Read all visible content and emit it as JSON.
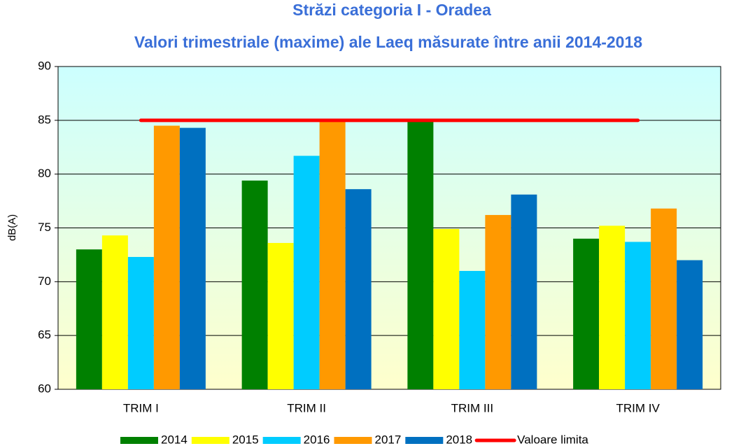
{
  "chart_data": {
    "type": "bar",
    "title": "Străzi categoria I - Oradea",
    "subtitle": "Valori trimestriale (maxime) ale Laeq măsurate între anii 2014-2018",
    "y_label": "dB(A)",
    "categories": [
      "TRIM I",
      "TRIM II",
      "TRIM III",
      "TRIM IV"
    ],
    "series": [
      {
        "name": "2014",
        "color": "#008000",
        "values": [
          73.0,
          79.4,
          85.0,
          74.0
        ]
      },
      {
        "name": "2015",
        "color": "#ffff00",
        "values": [
          74.3,
          73.6,
          74.9,
          75.2
        ]
      },
      {
        "name": "2016",
        "color": "#00ccff",
        "values": [
          72.3,
          81.7,
          71.0,
          73.7
        ]
      },
      {
        "name": "2017",
        "color": "#ff9900",
        "values": [
          84.5,
          85.0,
          76.2,
          76.8
        ]
      },
      {
        "name": "2018",
        "color": "#0070c0",
        "values": [
          84.3,
          78.6,
          78.1,
          72.0
        ]
      },
      {
        "name": "Valoare limita",
        "color": "#ff0000",
        "type": "line",
        "values": [
          85,
          85,
          85,
          85
        ]
      }
    ],
    "ylim": [
      60,
      90
    ],
    "yticks": [
      60,
      65,
      70,
      75,
      80,
      85,
      90
    ],
    "grid": true,
    "legend": "bottom"
  }
}
